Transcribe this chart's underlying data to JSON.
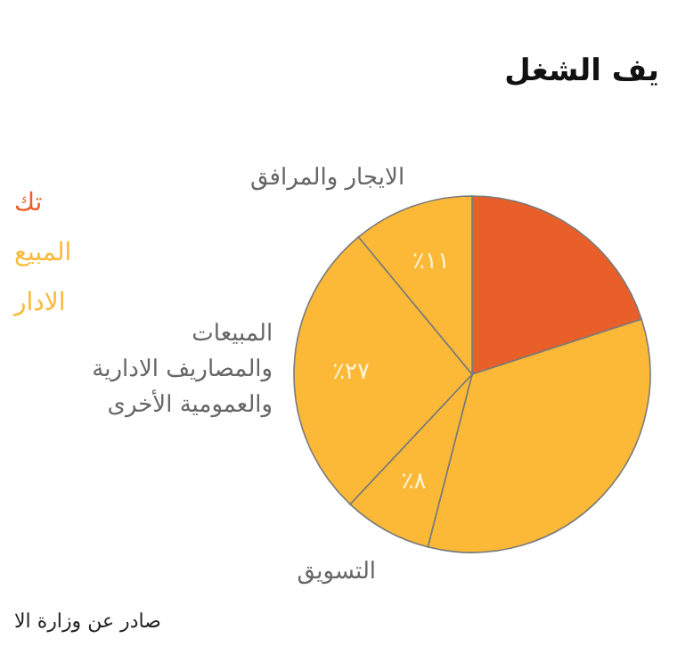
{
  "chart_data": {
    "type": "pie",
    "title": "يف الشغل",
    "categories": [
      null,
      null,
      "التسويق",
      "المبيعات\nوالمصاريف الادارية\nوالعمومية الأخرى",
      "الايجار والمرافق"
    ],
    "values": [
      20,
      34,
      8,
      27,
      11
    ],
    "colors": [
      "#e95f2a",
      "#fbb937",
      "#fbb937",
      "#fbb937",
      "#fbb937"
    ],
    "value_labels": [
      null,
      null,
      "٪٨",
      "٪٢٧",
      "٪١١"
    ],
    "annotations": [
      "تك",
      "المبيع",
      "الادار",
      "صادر عن وزارة الا"
    ]
  }
}
